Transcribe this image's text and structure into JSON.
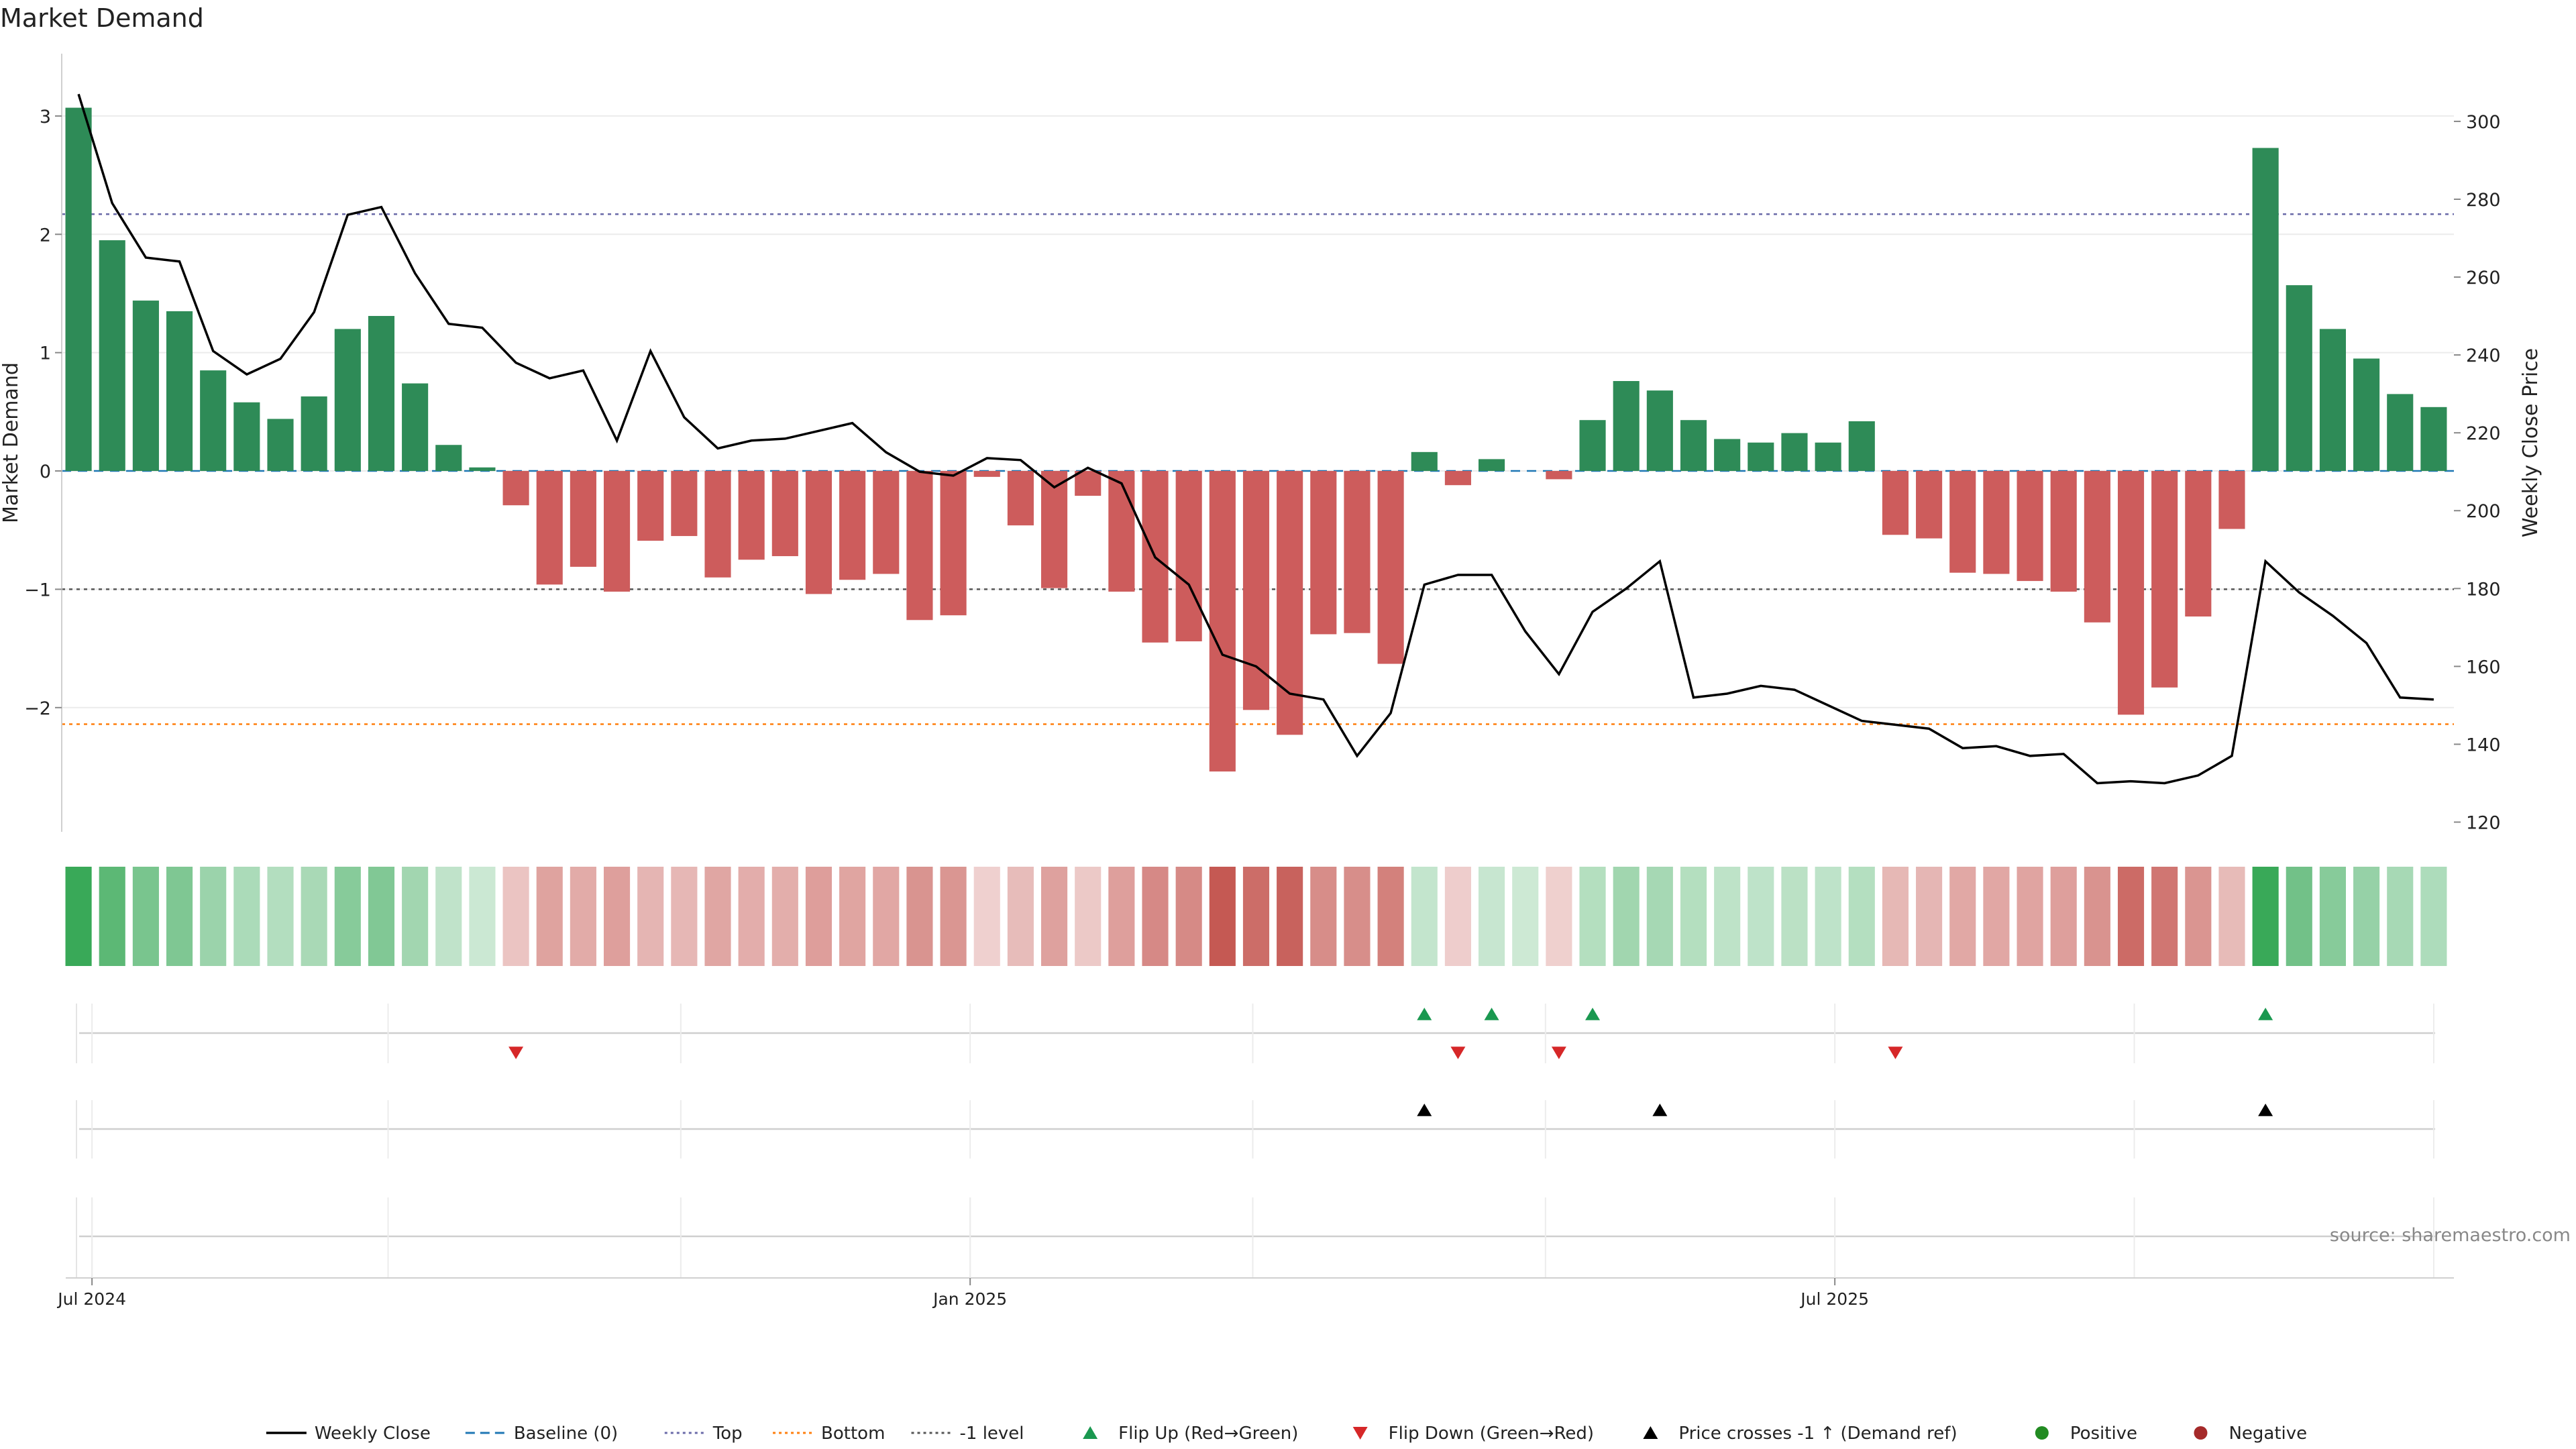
{
  "title": "Market Demand",
  "source": "source: sharemaestro.com",
  "colors": {
    "positive_bar": "#2e8b57",
    "negative_bar": "#cd5c5c",
    "price_line": "#000000",
    "baseline": "#1f77b4",
    "top_line": "#6a6aa8",
    "bottom_line": "#ff7f0e",
    "minus1_line": "#555555",
    "flip_up": "#1a9850",
    "flip_down": "#d62728",
    "cross": "#000000",
    "positive_dot": "#228b22",
    "negative_dot": "#a52a2a",
    "grid": "#ebebeb",
    "axis_text": "#222222",
    "source_text": "#888888"
  },
  "chart_data": {
    "type": "bar",
    "y_left": {
      "label": "Market Demand",
      "ticks": [
        3,
        2,
        1,
        0,
        -1,
        -2
      ],
      "tick_labels": [
        "3",
        "2",
        "1",
        "0",
        "−1",
        "−2"
      ],
      "range": [
        -3.05,
        3.3
      ]
    },
    "y_right": {
      "label": "Weekly Close Price",
      "ticks": [
        300,
        280,
        260,
        240,
        220,
        200,
        180,
        160,
        140,
        120
      ],
      "tick_labels": [
        "300",
        "280",
        "260",
        "240",
        "220",
        "200",
        "180",
        "160",
        "140",
        "120"
      ],
      "range": [
        117.5,
        310.5
      ]
    },
    "x_axis": {
      "ticks": [
        {
          "label": "Jul 2024",
          "index": 0.4
        },
        {
          "label": "Jan 2025",
          "index": 26.5
        },
        {
          "label": "Jul 2025",
          "index": 52.2
        }
      ],
      "minor_gridlines": [
        0.4,
        9.2,
        17.9,
        26.5,
        34.9,
        43.6,
        52.2,
        61.1,
        70.0
      ],
      "range": [
        -0.5,
        70.6
      ]
    },
    "levels": {
      "baseline": 0,
      "top": 2.17,
      "bottom": -2.14,
      "minus_one": -1
    },
    "series": [
      {
        "name": "Market Demand",
        "values": [
          3.07,
          1.95,
          1.44,
          1.35,
          0.85,
          0.58,
          0.44,
          0.63,
          1.2,
          1.31,
          0.74,
          0.22,
          0.03,
          -0.29,
          -0.96,
          -0.81,
          -1.02,
          -0.59,
          -0.55,
          -0.9,
          -0.75,
          -0.72,
          -1.04,
          -0.92,
          -0.87,
          -1.26,
          -1.22,
          -0.05,
          -0.46,
          -0.99,
          -0.21,
          -1.02,
          -1.45,
          -1.44,
          -2.54,
          -2.02,
          -2.23,
          -1.38,
          -1.37,
          -1.63,
          0.16,
          -0.12,
          0.1,
          0,
          -0.07,
          0.43,
          0.76,
          0.68,
          0.43,
          0.27,
          0.24,
          0.32,
          0.24,
          0.42,
          -0.54,
          -0.57,
          -0.86,
          -0.87,
          -0.93,
          -1.02,
          -1.28,
          -2.06,
          -1.83,
          -1.23,
          -0.49,
          2.73,
          1.57,
          1.2,
          0.95,
          0.65,
          0.54
        ]
      },
      {
        "name": "Weekly Close",
        "values": [
          307,
          279,
          265,
          264,
          241,
          235,
          239,
          251,
          276,
          278,
          261,
          248,
          247,
          238,
          234,
          236,
          218,
          241,
          224,
          216,
          218,
          218.5,
          220.5,
          222.5,
          215,
          210,
          209,
          213.5,
          213,
          206,
          211,
          207,
          188,
          181,
          163,
          160,
          153,
          151.5,
          137,
          148,
          181,
          183.5,
          183.5,
          169,
          158,
          174,
          180,
          187,
          152,
          153,
          155,
          154,
          150,
          146,
          145,
          144,
          139,
          139.5,
          137,
          137.5,
          130,
          130.5,
          130,
          132,
          137,
          187,
          179,
          173,
          166,
          152,
          151.5
        ]
      }
    ],
    "signals": {
      "flip_up": [
        40,
        42,
        45,
        65
      ],
      "flip_down": [
        13,
        41,
        44,
        54
      ],
      "price_crosses": [
        40,
        47,
        65
      ]
    },
    "legend": [
      {
        "label": "Weekly Close",
        "kind": "line"
      },
      {
        "label": "Baseline (0)",
        "kind": "dash-blue"
      },
      {
        "label": "Top",
        "kind": "dot-purple"
      },
      {
        "label": "Bottom",
        "kind": "dot-orange"
      },
      {
        "label": "-1 level",
        "kind": "dot-gray"
      },
      {
        "label": "Flip Up (Red→Green)",
        "kind": "tri-up-green"
      },
      {
        "label": "Flip Down (Green→Red)",
        "kind": "tri-down-red"
      },
      {
        "label": "Price crosses -1 ↑ (Demand ref)",
        "kind": "tri-up-black"
      },
      {
        "label": "Positive",
        "kind": "dot-green"
      },
      {
        "label": "Negative",
        "kind": "dot-red"
      }
    ],
    "legend_position": "bottom-center",
    "grid": true
  }
}
